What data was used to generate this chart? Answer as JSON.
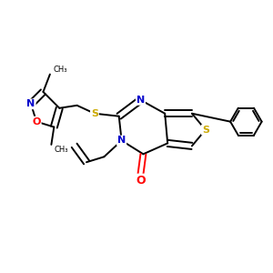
{
  "bg_color": "#ffffff",
  "atom_colors": {
    "C": "#000000",
    "N": "#0000cc",
    "O": "#ff0000",
    "S": "#ccaa00",
    "bond": "#000000"
  },
  "figsize": [
    3.0,
    3.0
  ],
  "dpi": 100,
  "scale": 1.0
}
